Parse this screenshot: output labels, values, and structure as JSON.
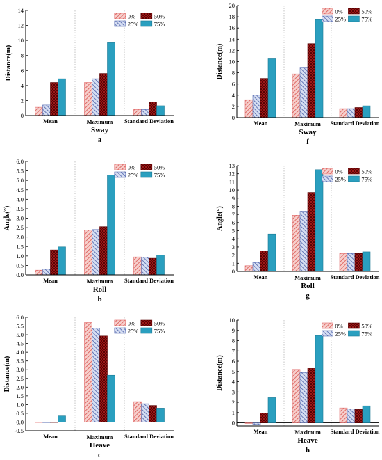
{
  "series_styles": [
    {
      "name": "0%",
      "fill": "#f4c1be",
      "stroke": "#e06666",
      "pattern": "hatch-red"
    },
    {
      "name": "25%",
      "fill": "#c9d3ec",
      "stroke": "#5b6fb3",
      "pattern": "hatch-blue"
    },
    {
      "name": "50%",
      "fill": "#a81c1c",
      "stroke": "#5a0000",
      "pattern": "cross-dark"
    },
    {
      "name": "75%",
      "fill": "#2a9fbf",
      "stroke": "#1d7a94",
      "pattern": "solid"
    }
  ],
  "chart_data": [
    {
      "type": "bar",
      "panel_label": "a",
      "xlabel": "Sway",
      "ylabel": "Distance(m)",
      "categories": [
        "Mean",
        "Maximum",
        "Standard Deviation"
      ],
      "ylim": [
        0,
        14
      ],
      "yticks": [
        0,
        2,
        4,
        6,
        8,
        10,
        12,
        14
      ],
      "series": [
        {
          "name": "0%",
          "values": [
            1.1,
            4.4,
            0.8
          ]
        },
        {
          "name": "25%",
          "values": [
            1.4,
            4.9,
            0.8
          ]
        },
        {
          "name": "50%",
          "values": [
            4.4,
            5.6,
            1.8
          ]
        },
        {
          "name": "75%",
          "values": [
            4.9,
            9.7,
            1.3
          ]
        }
      ]
    },
    {
      "type": "bar",
      "panel_label": "f",
      "xlabel": "Sway",
      "ylabel": "Distance(m)",
      "categories": [
        "Mean",
        "Maximum",
        "Standard Deviation"
      ],
      "ylim": [
        0,
        20
      ],
      "yticks": [
        0,
        2,
        4,
        6,
        8,
        10,
        12,
        14,
        16,
        18,
        20
      ],
      "series": [
        {
          "name": "0%",
          "values": [
            3.2,
            7.8,
            1.6
          ]
        },
        {
          "name": "25%",
          "values": [
            4.0,
            9.0,
            1.6
          ]
        },
        {
          "name": "50%",
          "values": [
            7.0,
            13.2,
            1.8
          ]
        },
        {
          "name": "75%",
          "values": [
            10.5,
            17.5,
            2.1
          ]
        }
      ]
    },
    {
      "type": "bar",
      "panel_label": "b",
      "xlabel": "Roll",
      "ylabel": "Angle(°)",
      "categories": [
        "Mean",
        "Maximum",
        "Standard Deviation"
      ],
      "ylim": [
        0,
        6
      ],
      "yticks": [
        0.0,
        0.5,
        1.0,
        1.5,
        2.0,
        2.5,
        3.0,
        3.5,
        4.0,
        4.5,
        5.0,
        5.5,
        6.0
      ],
      "series": [
        {
          "name": "0%",
          "values": [
            0.25,
            2.37,
            0.95
          ]
        },
        {
          "name": "25%",
          "values": [
            0.3,
            2.4,
            0.93
          ]
        },
        {
          "name": "50%",
          "values": [
            1.32,
            2.55,
            0.88
          ]
        },
        {
          "name": "75%",
          "values": [
            1.48,
            5.28,
            1.04
          ]
        }
      ]
    },
    {
      "type": "bar",
      "panel_label": "g",
      "xlabel": "Roll",
      "ylabel": "Angle(°)",
      "categories": [
        "Mean",
        "Maximum",
        "Standard Deviation"
      ],
      "ylim": [
        0,
        13
      ],
      "yticks": [
        0,
        1,
        2,
        3,
        4,
        5,
        6,
        7,
        8,
        9,
        10,
        11,
        12,
        13
      ],
      "series": [
        {
          "name": "0%",
          "values": [
            0.7,
            6.9,
            2.2
          ]
        },
        {
          "name": "25%",
          "values": [
            1.1,
            7.4,
            2.2
          ]
        },
        {
          "name": "50%",
          "values": [
            2.5,
            9.7,
            2.2
          ]
        },
        {
          "name": "75%",
          "values": [
            4.6,
            12.5,
            2.4
          ]
        }
      ]
    },
    {
      "type": "bar",
      "panel_label": "c",
      "xlabel": "Heave",
      "ylabel": "Distance(m)",
      "categories": [
        "Mean",
        "Maximum",
        "Standard Deviation"
      ],
      "ylim": [
        -0.5,
        6
      ],
      "yticks": [
        -0.5,
        0.0,
        0.5,
        1.0,
        1.5,
        2.0,
        2.5,
        3.0,
        3.5,
        4.0,
        4.5,
        5.0,
        5.5,
        6.0
      ],
      "series": [
        {
          "name": "0%",
          "values": [
            -0.02,
            5.7,
            1.17
          ]
        },
        {
          "name": "25%",
          "values": [
            -0.03,
            5.38,
            1.05
          ]
        },
        {
          "name": "50%",
          "values": [
            -0.01,
            4.93,
            0.95
          ]
        },
        {
          "name": "75%",
          "values": [
            0.35,
            2.68,
            0.8
          ]
        }
      ]
    },
    {
      "type": "bar",
      "panel_label": "h",
      "xlabel": "Heave",
      "ylabel": "Distance(m)",
      "categories": [
        "Mean",
        "Maximum",
        "Standard Deviation"
      ],
      "ylim": [
        -0.3,
        10
      ],
      "yticks": [
        0,
        1,
        2,
        3,
        4,
        5,
        6,
        7,
        8,
        9,
        10
      ],
      "series": [
        {
          "name": "0%",
          "values": [
            -0.05,
            5.2,
            1.45
          ]
        },
        {
          "name": "25%",
          "values": [
            -0.15,
            4.9,
            1.35
          ]
        },
        {
          "name": "50%",
          "values": [
            0.95,
            5.3,
            1.3
          ]
        },
        {
          "name": "75%",
          "values": [
            2.45,
            8.5,
            1.65
          ]
        }
      ]
    }
  ]
}
